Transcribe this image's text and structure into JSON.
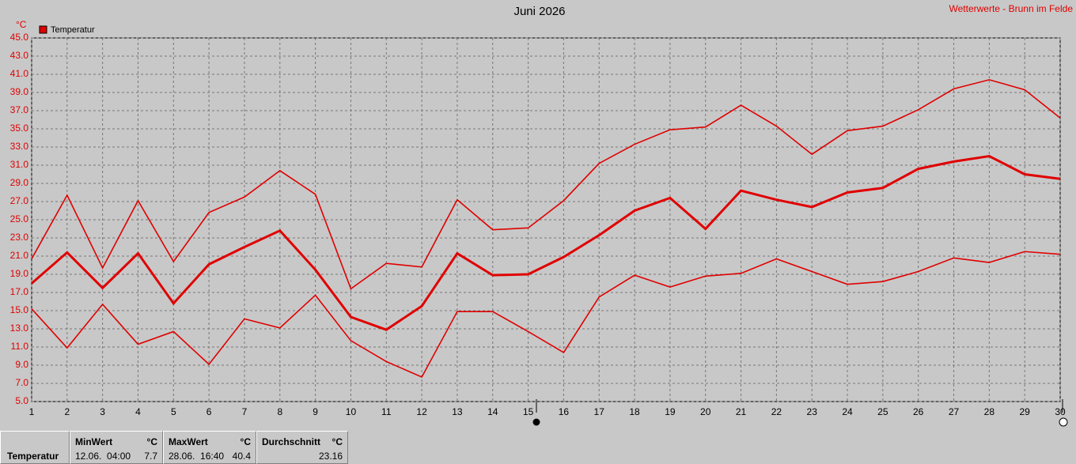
{
  "chart_data": {
    "type": "line",
    "title": "Juni 2026",
    "source": "Wetterwerte - Brunn im Felde",
    "y_unit": "°C",
    "legend": {
      "label": "Temperatur",
      "color": "#e00000",
      "corner": "top-left"
    },
    "grid": true,
    "x": [
      1,
      2,
      3,
      4,
      5,
      6,
      7,
      8,
      9,
      10,
      11,
      12,
      13,
      14,
      15,
      16,
      17,
      18,
      19,
      20,
      21,
      22,
      23,
      24,
      25,
      26,
      27,
      28,
      29,
      30
    ],
    "xlim": [
      1,
      30
    ],
    "xticks": [
      1,
      2,
      3,
      4,
      5,
      6,
      7,
      8,
      9,
      10,
      11,
      12,
      13,
      14,
      15,
      16,
      17,
      18,
      19,
      20,
      21,
      22,
      23,
      24,
      25,
      26,
      27,
      28,
      29,
      30
    ],
    "ylim": [
      5,
      45
    ],
    "yticks": [
      {
        "value": 5,
        "label": "5.0"
      },
      {
        "value": 7,
        "label": "7.0"
      },
      {
        "value": 9,
        "label": "9.0"
      },
      {
        "value": 11,
        "label": "11.0"
      },
      {
        "value": 13,
        "label": "13.0"
      },
      {
        "value": 15,
        "label": "15.0"
      },
      {
        "value": 17,
        "label": "17.0"
      },
      {
        "value": 19,
        "label": "19.0"
      },
      {
        "value": 21,
        "label": "21.0"
      },
      {
        "value": 23,
        "label": "23.0"
      },
      {
        "value": 25,
        "label": "25.0"
      },
      {
        "value": 27,
        "label": "27.0"
      },
      {
        "value": 29,
        "label": "29.0"
      },
      {
        "value": 31,
        "label": "31.0"
      },
      {
        "value": 33,
        "label": "33.0"
      },
      {
        "value": 35,
        "label": "35.0"
      },
      {
        "value": 37,
        "label": "37.0"
      },
      {
        "value": 39,
        "label": "39.0"
      },
      {
        "value": 41,
        "label": "41.0"
      },
      {
        "value": 43,
        "label": "43.0"
      },
      {
        "value": 45,
        "label": "45.0"
      }
    ],
    "series": [
      {
        "color": "#e00000",
        "width": 1.6,
        "values": [
          20.7,
          27.7,
          19.7,
          27.1,
          20.4,
          25.8,
          27.5,
          30.4,
          27.8,
          17.4,
          20.2,
          19.8,
          27.2,
          23.9,
          24.1,
          27.1,
          31.2,
          33.3,
          34.9,
          35.2,
          37.6,
          35.3,
          32.2,
          34.8,
          35.3,
          37.1,
          39.4,
          40.4,
          39.3,
          36.2
        ]
      },
      {
        "color": "#e00000",
        "width": 3,
        "values": [
          18.0,
          21.4,
          17.5,
          21.3,
          15.8,
          20.1,
          22.0,
          23.8,
          19.5,
          14.3,
          12.9,
          15.5,
          21.3,
          18.9,
          19.0,
          20.9,
          23.3,
          26.0,
          27.4,
          24.0,
          28.2,
          27.2,
          26.4,
          28.0,
          28.5,
          30.6,
          31.4,
          32.0,
          30.0,
          29.5
        ]
      },
      {
        "color": "#e00000",
        "width": 1.6,
        "values": [
          15.2,
          10.9,
          15.7,
          11.3,
          12.7,
          9.1,
          14.1,
          13.1,
          16.7,
          11.7,
          9.4,
          7.7,
          14.9,
          14.9,
          12.7,
          10.4,
          16.5,
          18.9,
          17.6,
          18.8,
          19.1,
          20.7,
          19.3,
          17.9,
          18.2,
          19.3,
          20.8,
          20.3,
          21.5,
          21.2
        ]
      }
    ]
  },
  "stats": {
    "label": "Temperatur",
    "columns": [
      {
        "title": "MinWert",
        "unit": "°C",
        "when": "12.06.  04:00",
        "value": "7.7"
      },
      {
        "title": "MaxWert",
        "unit": "°C",
        "when": "28.06.  16:40",
        "value": "40.4"
      },
      {
        "title": "Durchschnitt",
        "unit": "°C",
        "when": "",
        "value": "23.16"
      }
    ]
  }
}
